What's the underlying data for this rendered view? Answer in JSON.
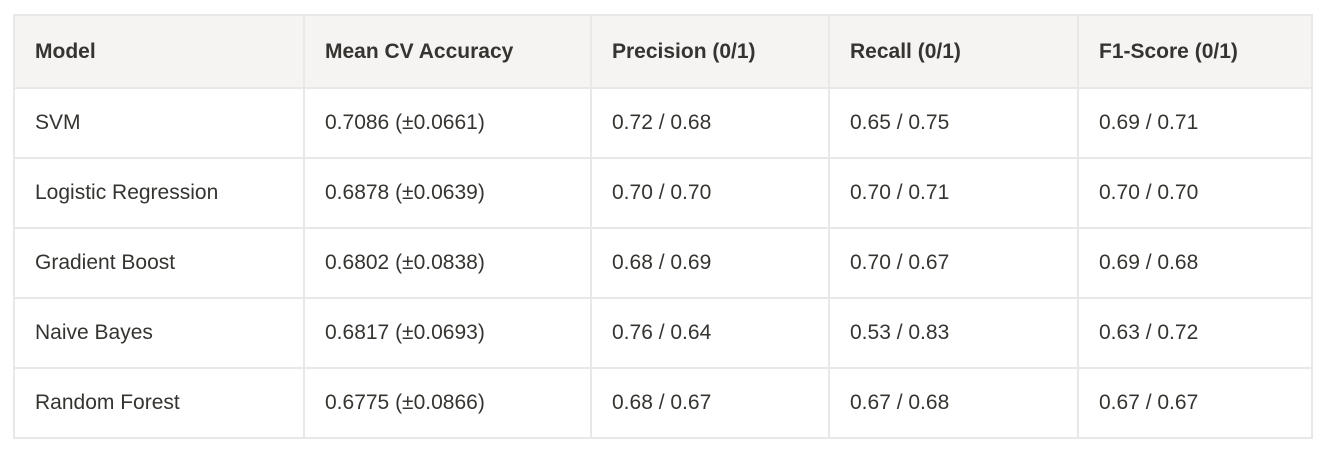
{
  "colors": {
    "background": "#ffffff",
    "header_background": "#f5f4f2",
    "border": "#e9e8e6",
    "text": "#363430"
  },
  "table": {
    "columns": [
      {
        "label": "Model"
      },
      {
        "label": "Mean CV Accuracy"
      },
      {
        "label": "Precision (0/1)"
      },
      {
        "label": "Recall (0/1)"
      },
      {
        "label": "F1-Score (0/1)"
      }
    ],
    "rows": [
      {
        "model": "SVM",
        "accuracy": "0.7086 (±0.0661)",
        "precision": "0.72 / 0.68",
        "recall": "0.65 / 0.75",
        "f1": "0.69 / 0.71"
      },
      {
        "model": "Logistic Regression",
        "accuracy": "0.6878 (±0.0639)",
        "precision": "0.70 / 0.70",
        "recall": "0.70 / 0.71",
        "f1": "0.70 / 0.70"
      },
      {
        "model": "Gradient Boost",
        "accuracy": "0.6802 (±0.0838)",
        "precision": "0.68 / 0.69",
        "recall": "0.70 / 0.67",
        "f1": "0.69 / 0.68"
      },
      {
        "model": "Naive Bayes",
        "accuracy": "0.6817 (±0.0693)",
        "precision": "0.76 / 0.64",
        "recall": "0.53 / 0.83",
        "f1": "0.63 / 0.72"
      },
      {
        "model": "Random Forest",
        "accuracy": "0.6775 (±0.0866)",
        "precision": "0.68 / 0.67",
        "recall": "0.67 / 0.68",
        "f1": "0.67 / 0.67"
      }
    ]
  },
  "chart_data": {
    "type": "table",
    "columns": [
      "Model",
      "Mean CV Accuracy",
      "Precision (0/1)",
      "Recall (0/1)",
      "F1-Score (0/1)"
    ],
    "rows": [
      [
        "SVM",
        "0.7086 (±0.0661)",
        "0.72 / 0.68",
        "0.65 / 0.75",
        "0.69 / 0.71"
      ],
      [
        "Logistic Regression",
        "0.6878 (±0.0639)",
        "0.70 / 0.70",
        "0.70 / 0.71",
        "0.70 / 0.70"
      ],
      [
        "Gradient Boost",
        "0.6802 (±0.0838)",
        "0.68 / 0.69",
        "0.70 / 0.67",
        "0.69 / 0.68"
      ],
      [
        "Naive Bayes",
        "0.6817 (±0.0693)",
        "0.76 / 0.64",
        "0.53 / 0.83",
        "0.63 / 0.72"
      ],
      [
        "Random Forest",
        "0.6775 (±0.0866)",
        "0.68 / 0.67",
        "0.67 / 0.68",
        "0.67 / 0.67"
      ]
    ],
    "mean_cv_accuracy_values": [
      0.7086,
      0.6878,
      0.6802,
      0.6817,
      0.6775
    ],
    "mean_cv_accuracy_std": [
      0.0661,
      0.0639,
      0.0838,
      0.0693,
      0.0866
    ],
    "precision_class0": [
      0.72,
      0.7,
      0.68,
      0.76,
      0.68
    ],
    "precision_class1": [
      0.68,
      0.7,
      0.69,
      0.64,
      0.67
    ],
    "recall_class0": [
      0.65,
      0.7,
      0.7,
      0.53,
      0.67
    ],
    "recall_class1": [
      0.75,
      0.71,
      0.67,
      0.83,
      0.68
    ],
    "f1_class0": [
      0.69,
      0.7,
      0.69,
      0.63,
      0.67
    ],
    "f1_class1": [
      0.71,
      0.7,
      0.68,
      0.72,
      0.67
    ]
  }
}
